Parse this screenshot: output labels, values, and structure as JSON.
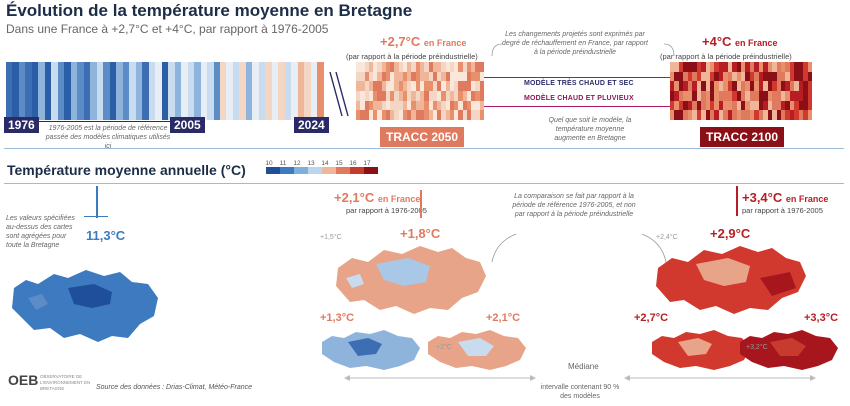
{
  "title": "Évolution de la température moyenne en Bretagne",
  "subtitle": "Dans une France à +2,7°C et +4°C, par rapport à 1976-2005",
  "stripes": {
    "years": {
      "start": "1976",
      "ref_end": "2005",
      "end": "2024"
    },
    "ref_note": "1976-2005 est la période de référence passée des modèles climatiques utilisés ici",
    "colors": [
      "#3d6eb4",
      "#2a5fa8",
      "#5c8cc6",
      "#3d6eb4",
      "#2a5fa8",
      "#8eb4dc",
      "#2a5fa8",
      "#c9dbee",
      "#5c8cc6",
      "#2a5fa8",
      "#8eb4dc",
      "#5c8cc6",
      "#3d6eb4",
      "#8eb4dc",
      "#c9dbee",
      "#5c8cc6",
      "#2a5fa8",
      "#8eb4dc",
      "#5c8cc6",
      "#c9dbee",
      "#8eb4dc",
      "#3d6eb4",
      "#c9dbee",
      "#e8eef6",
      "#2a5fa8",
      "#c9dbee",
      "#8eb4dc",
      "#e8eef6",
      "#c9dbee",
      "#8eb4dc",
      "#e8eef6",
      "#c9dbee",
      "#5c8cc6",
      "#f4d6c4",
      "#e8eef6",
      "#c9dbee",
      "#f4d6c4",
      "#8eb4dc",
      "#e8eef6",
      "#c9dbee",
      "#f4d6c4",
      "#e8eef6",
      "#f4d6c4",
      "#c9dbee",
      "#e8eef6",
      "#f0b69a",
      "#f4d6c4",
      "#e8eef6",
      "#e88f6c"
    ]
  },
  "scenarios": {
    "note_top": "Les changements projetés sont exprimés par degré de réchauffement en France, par rapport à la période préindustrielle",
    "tracc2050": {
      "value": "+2,7°C",
      "unit": "en France",
      "ref": "(par rapport à la période préindustrielle)",
      "label": "TRACC 2050",
      "color": "#e07a5f"
    },
    "tracc2100": {
      "value": "+4°C",
      "unit": "en France",
      "ref": "(par rapport à la période préindustrielle)",
      "label": "TRACC 2100",
      "color": "#b81d24"
    },
    "model_hot_dry": "MODÈLE TRÈS CHAUD ET SEC",
    "model_hot_wet": "MODÈLE CHAUD ET PLUVIEUX",
    "note_model": "Quel que soit le modèle, la température moyenne augmente en Bretagne"
  },
  "annual": {
    "section_title": "Température moyenne annuelle (°C)",
    "legend": {
      "ticks": [
        "10",
        "11",
        "12",
        "13",
        "14",
        "15",
        "16",
        "17"
      ],
      "colors": [
        "#1f4f9a",
        "#3d7ac0",
        "#7fb0dc",
        "#b9d6ee",
        "#f0b69a",
        "#e07a5f",
        "#c73a2e",
        "#8a0f16"
      ]
    },
    "note_left": "Les valeurs spécifiées au-dessus des cartes sont agrégées pour toute la Bretagne",
    "present": {
      "value": "11,3°C",
      "color": "#3d7ac0"
    },
    "s2050": {
      "france": "+2,1°C",
      "france_unit": "en France",
      "ref": "par rapport à 1976-2005",
      "median": "+1,8°C",
      "low": "+1,3°C",
      "high": "+2,1°C",
      "grey_upper": "+1,5°C",
      "grey_lower": "+2°C",
      "color": "#e07a5f"
    },
    "s2100": {
      "france": "+3,4°C",
      "france_unit": "en France",
      "ref": "par rapport à 1976-2005",
      "median": "+2,9°C",
      "low": "+2,7°C",
      "high": "+3,3°C",
      "grey_upper": "+2,4°C",
      "grey_lower": "+3,2°C",
      "color": "#b81d24"
    },
    "note_compare": "La comparaison se fait par rapport à la période de référence 1976-2005, et non par rapport à la période préindustrielle",
    "median_label": "Médiane",
    "interval_label": "intervalle contenant 90 % des modèles"
  },
  "footer": {
    "logo": "OEB",
    "logo_sub": "OBSERVATOIRE DE L'ENVIRONNEMENT EN BRETAGNE",
    "source": "Source des données : Drias-Climat, Météo-France"
  }
}
